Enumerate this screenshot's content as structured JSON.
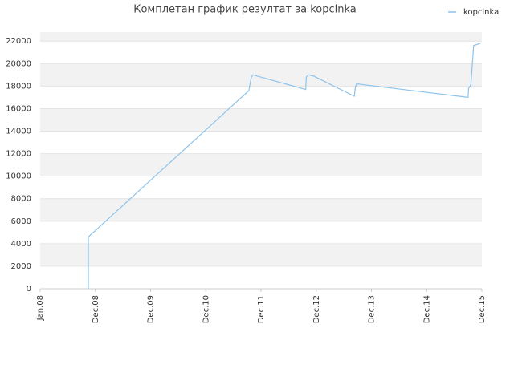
{
  "chart_data": {
    "type": "line",
    "title": "Комплетан график резултат за kopcinka",
    "series": [
      {
        "name": "kopcinka",
        "color": "#8ec3ea",
        "x": [
          0.873,
          0.873,
          3.78,
          3.82,
          3.85,
          4.81,
          4.82,
          4.86,
          4.95,
          5.69,
          5.71,
          5.73,
          7.75,
          7.76,
          7.8,
          7.84,
          7.85,
          7.97
        ],
        "values": [
          0,
          4600,
          17600,
          18700,
          19000,
          17700,
          18800,
          19000,
          18900,
          17100,
          17900,
          18200,
          17000,
          17800,
          18100,
          20800,
          21600,
          21800
        ]
      }
    ],
    "xlim": [
      0,
      8
    ],
    "xticks": [
      {
        "value": 0,
        "label": "Jan.08"
      },
      {
        "value": 1,
        "label": "Dec.08"
      },
      {
        "value": 2,
        "label": "Dec.09"
      },
      {
        "value": 3,
        "label": "Dec.10"
      },
      {
        "value": 4,
        "label": "Dec.11"
      },
      {
        "value": 5,
        "label": "Dec.12"
      },
      {
        "value": 6,
        "label": "Dec.13"
      },
      {
        "value": 7,
        "label": "Dec.14"
      },
      {
        "value": 8,
        "label": "Dec.15"
      }
    ],
    "ylim": [
      0,
      22800
    ],
    "yticks": [
      0,
      2000,
      4000,
      6000,
      8000,
      10000,
      12000,
      14000,
      16000,
      18000,
      20000,
      22000
    ],
    "legend": "top-right"
  }
}
